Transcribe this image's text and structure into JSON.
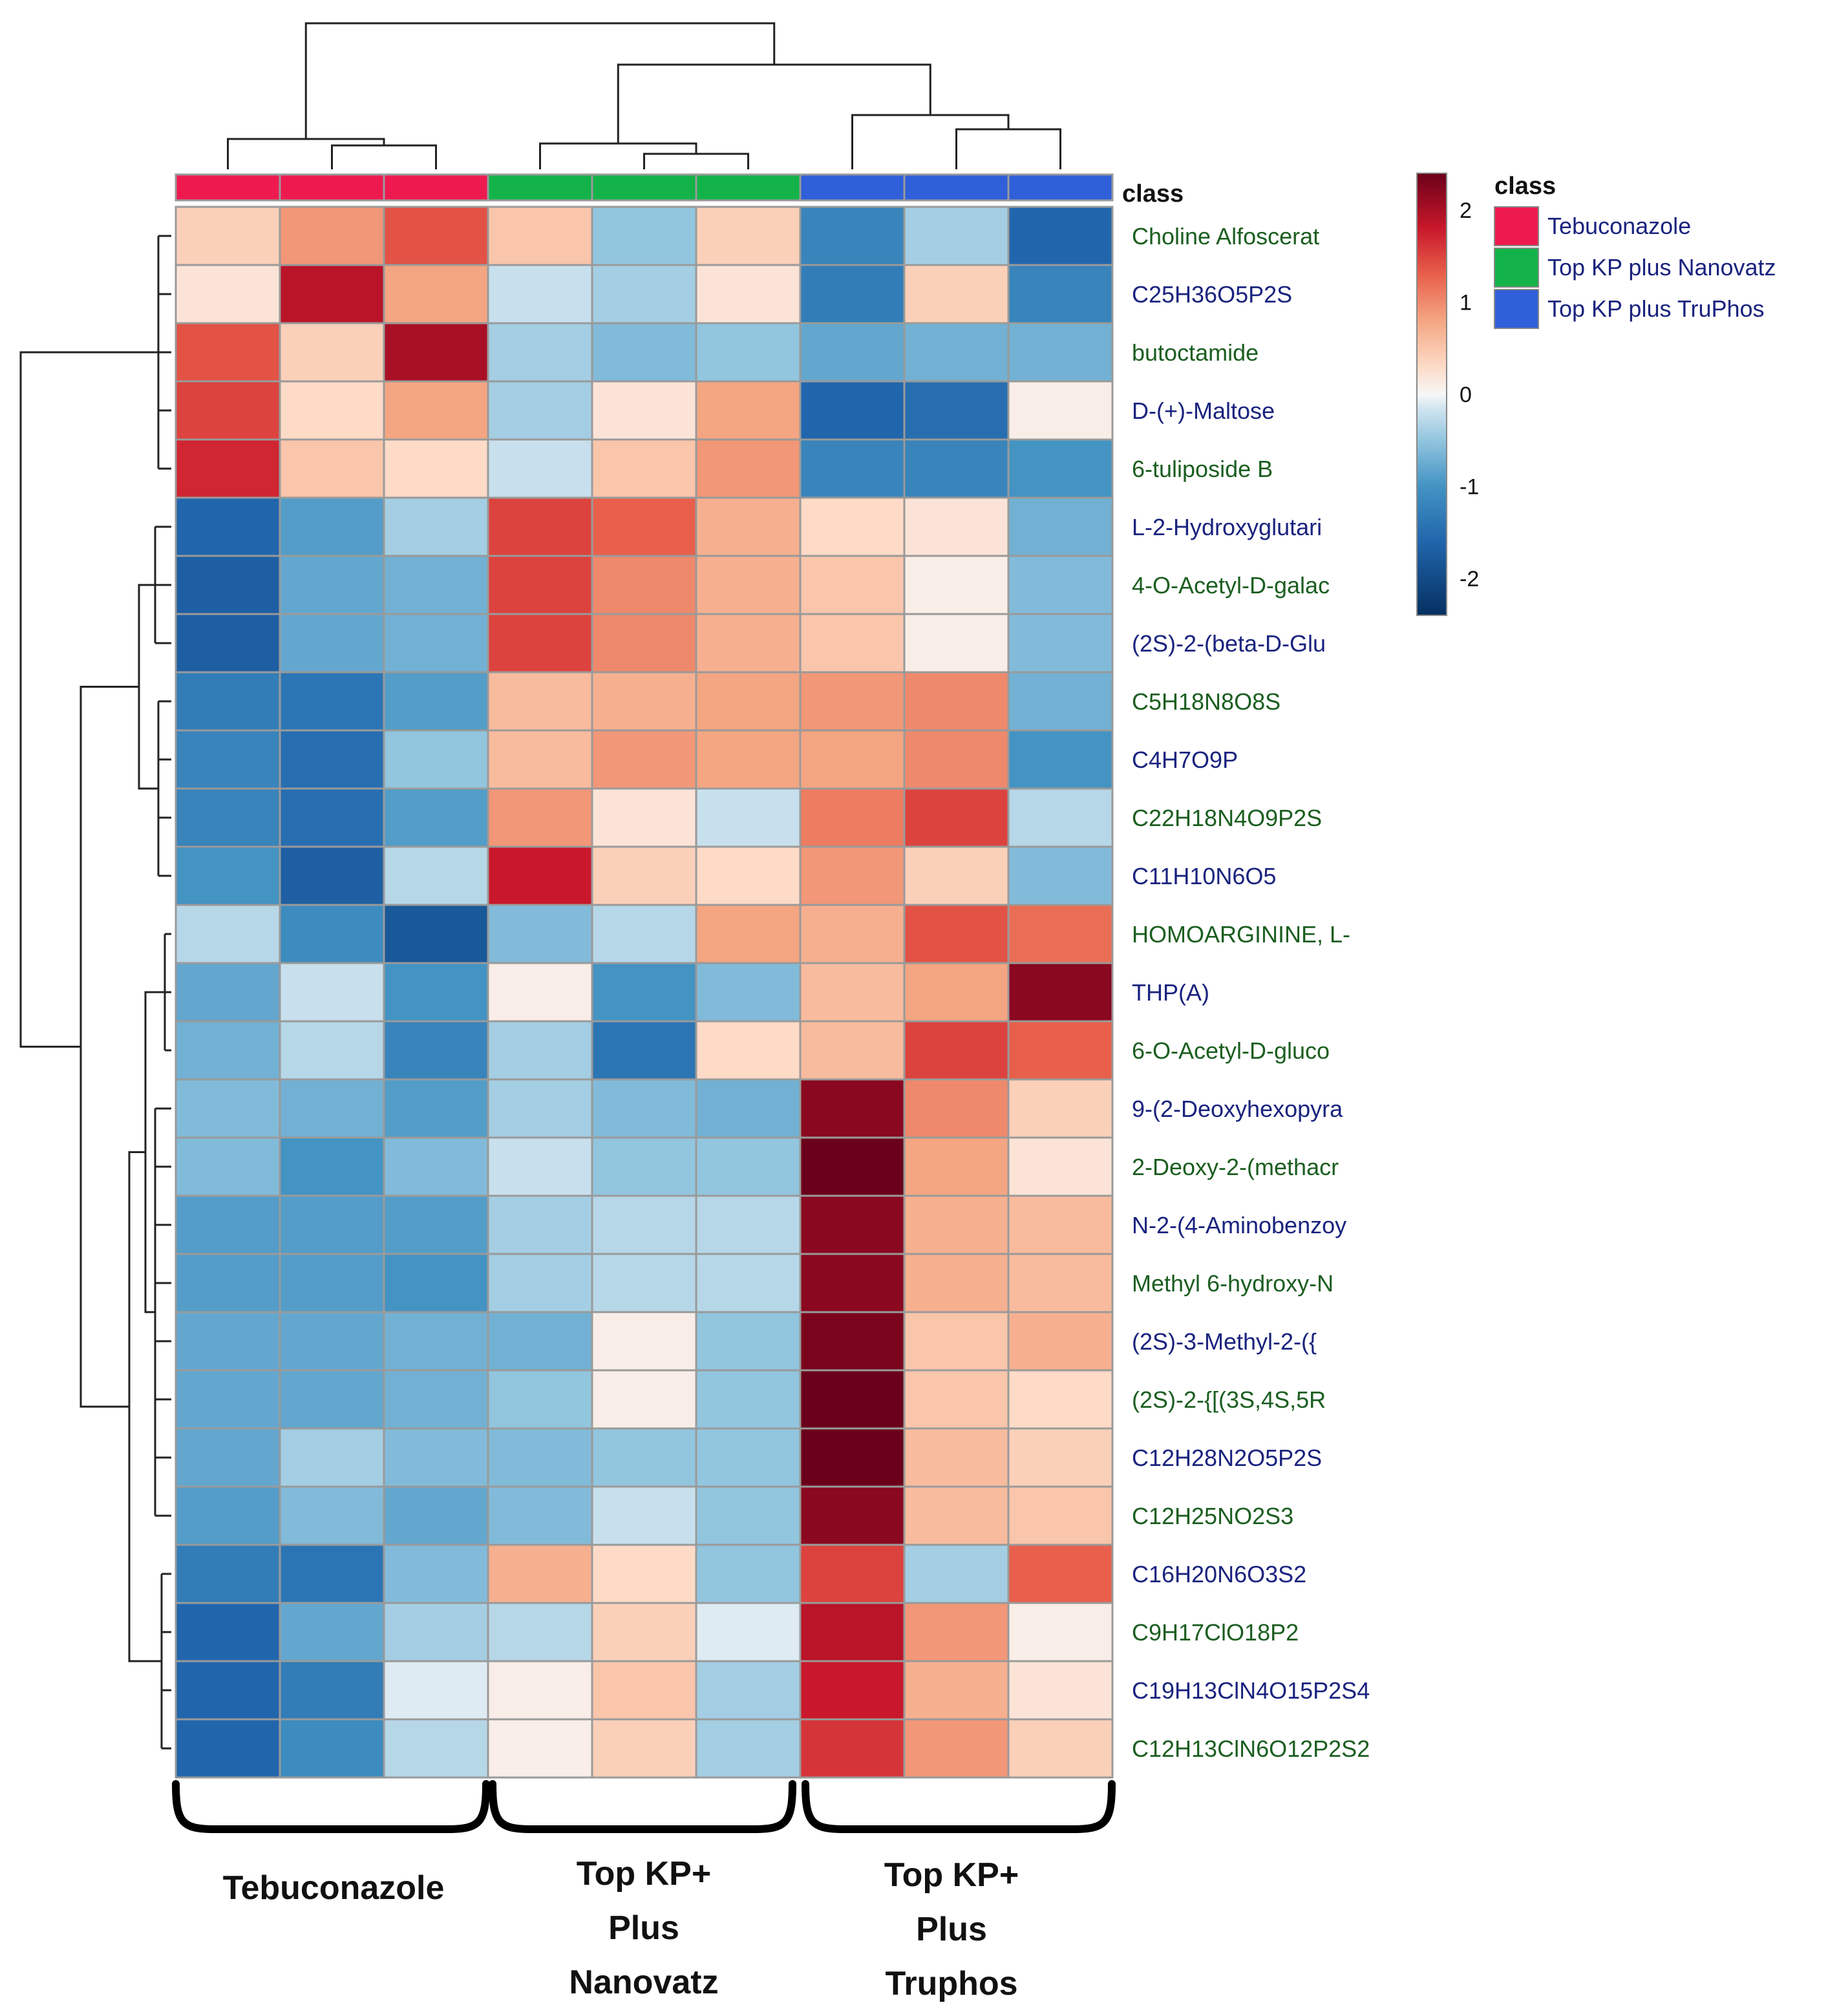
{
  "chart_data": {
    "type": "heatmap",
    "title": "",
    "class_bar_label": "class",
    "legend_title": "class",
    "classes": [
      {
        "name": "Tebuconazole",
        "color": "#ee1a4f"
      },
      {
        "name": "Top KP plus Nanovatz",
        "color": "#13b34a"
      },
      {
        "name": "Top KP plus TruPhos",
        "color": "#2f5fd9"
      }
    ],
    "column_classes": [
      0,
      0,
      0,
      1,
      1,
      1,
      2,
      2,
      2
    ],
    "rows": [
      "Choline Alfoscerat",
      "C25H36O5P2S",
      "butoctamide",
      "D-(+)-Maltose",
      "6-tuliposide B",
      "L-2-Hydroxyglutari",
      "4-O-Acetyl-D-galac",
      "(2S)-2-(beta-D-Glu",
      "C5H18N8O8S",
      "C4H7O9P",
      "C22H18N4O9P2S",
      "C11H10N6O5",
      "HOMOARGININE, L-",
      "THP(A)",
      "6-O-Acetyl-D-gluco",
      "9-(2-Deoxyhexopyra",
      "2-Deoxy-2-(methacr",
      "N-2-(4-Aminobenzoy",
      "Methyl 6-hydroxy-N",
      "(2S)-3-Methyl-2-({",
      "(2S)-2-{[(3S,4S,5R",
      "C12H28N2O5P2S",
      "C12H25NO2S3",
      "C16H20N6O3S2",
      "C9H17ClO18P2",
      "C19H13ClN4O15P2S4",
      "C12H13ClN6O12P2S2"
    ],
    "values": [
      [
        0.4,
        0.9,
        1.4,
        0.5,
        -0.5,
        0.4,
        -1.2,
        -0.4,
        -1.6
      ],
      [
        0.2,
        1.9,
        0.8,
        -0.2,
        -0.4,
        0.2,
        -1.3,
        0.4,
        -1.2
      ],
      [
        1.4,
        0.4,
        2.0,
        -0.4,
        -0.6,
        -0.5,
        -0.8,
        -0.7,
        -0.7
      ],
      [
        1.5,
        0.3,
        0.8,
        -0.4,
        0.2,
        0.8,
        -1.6,
        -1.5,
        0.1
      ],
      [
        1.7,
        0.5,
        0.3,
        -0.2,
        0.5,
        0.9,
        -1.2,
        -1.2,
        -1.0
      ],
      [
        -1.6,
        -0.9,
        -0.4,
        1.5,
        1.3,
        0.7,
        0.3,
        0.2,
        -0.7
      ],
      [
        -1.7,
        -0.8,
        -0.7,
        1.5,
        1.0,
        0.7,
        0.5,
        0.1,
        -0.6
      ],
      [
        -1.7,
        -0.8,
        -0.7,
        1.5,
        1.0,
        0.7,
        0.5,
        0.1,
        -0.6
      ],
      [
        -1.3,
        -1.4,
        -0.9,
        0.6,
        0.7,
        0.8,
        0.9,
        1.0,
        -0.7
      ],
      [
        -1.2,
        -1.5,
        -0.5,
        0.6,
        0.9,
        0.8,
        0.8,
        1.0,
        -1.0
      ],
      [
        -1.2,
        -1.5,
        -0.9,
        0.9,
        0.2,
        -0.2,
        1.1,
        1.5,
        -0.3
      ],
      [
        -1.0,
        -1.7,
        -0.3,
        1.8,
        0.4,
        0.3,
        0.9,
        0.4,
        -0.6
      ],
      [
        -0.3,
        -1.1,
        -1.8,
        -0.6,
        -0.3,
        0.8,
        0.7,
        1.4,
        1.2
      ],
      [
        -0.8,
        -0.2,
        -1.0,
        0.1,
        -1.0,
        -0.6,
        0.6,
        0.8,
        2.2
      ],
      [
        -0.7,
        -0.3,
        -1.2,
        -0.4,
        -1.4,
        0.3,
        0.6,
        1.5,
        1.3
      ],
      [
        -0.6,
        -0.7,
        -0.9,
        -0.4,
        -0.6,
        -0.7,
        2.2,
        1.0,
        0.4
      ],
      [
        -0.6,
        -1.0,
        -0.6,
        -0.2,
        -0.5,
        -0.5,
        2.4,
        0.8,
        0.2
      ],
      [
        -0.9,
        -0.9,
        -0.9,
        -0.4,
        -0.3,
        -0.3,
        2.2,
        0.7,
        0.6
      ],
      [
        -0.9,
        -0.9,
        -1.0,
        -0.4,
        -0.3,
        -0.3,
        2.2,
        0.7,
        0.6
      ],
      [
        -0.8,
        -0.8,
        -0.7,
        -0.7,
        0.1,
        -0.5,
        2.3,
        0.5,
        0.7
      ],
      [
        -0.8,
        -0.8,
        -0.7,
        -0.5,
        0.1,
        -0.5,
        2.4,
        0.5,
        0.3
      ],
      [
        -0.8,
        -0.4,
        -0.6,
        -0.6,
        -0.5,
        -0.5,
        2.4,
        0.6,
        0.4
      ],
      [
        -0.9,
        -0.6,
        -0.8,
        -0.6,
        -0.2,
        -0.5,
        2.2,
        0.6,
        0.5
      ],
      [
        -1.3,
        -1.4,
        -0.6,
        0.7,
        0.3,
        -0.5,
        1.5,
        -0.4,
        1.3
      ],
      [
        -1.6,
        -0.8,
        -0.4,
        -0.3,
        0.4,
        -0.1,
        1.9,
        0.9,
        0.1
      ],
      [
        -1.6,
        -1.3,
        -0.1,
        0.1,
        0.5,
        -0.4,
        1.8,
        0.7,
        0.2
      ],
      [
        -1.6,
        -1.1,
        -0.3,
        0.1,
        0.4,
        -0.4,
        1.6,
        0.9,
        0.4
      ]
    ],
    "color_scale": {
      "min": -2.4,
      "max": 2.4,
      "ticks": [
        2,
        1,
        0,
        -1,
        -2
      ],
      "tick_labels": [
        "2",
        "1",
        "0",
        "-1",
        "-2"
      ],
      "low_color": "#053061",
      "mid_color": "#f7f7f7",
      "high_color": "#67001f"
    },
    "group_labels": [
      {
        "lines": [
          "Tebuconazole"
        ]
      },
      {
        "lines": [
          "Top KP+",
          "Plus",
          "Nanovatz"
        ]
      },
      {
        "lines": [
          "Top KP+",
          "Plus",
          "Truphos"
        ]
      }
    ]
  }
}
